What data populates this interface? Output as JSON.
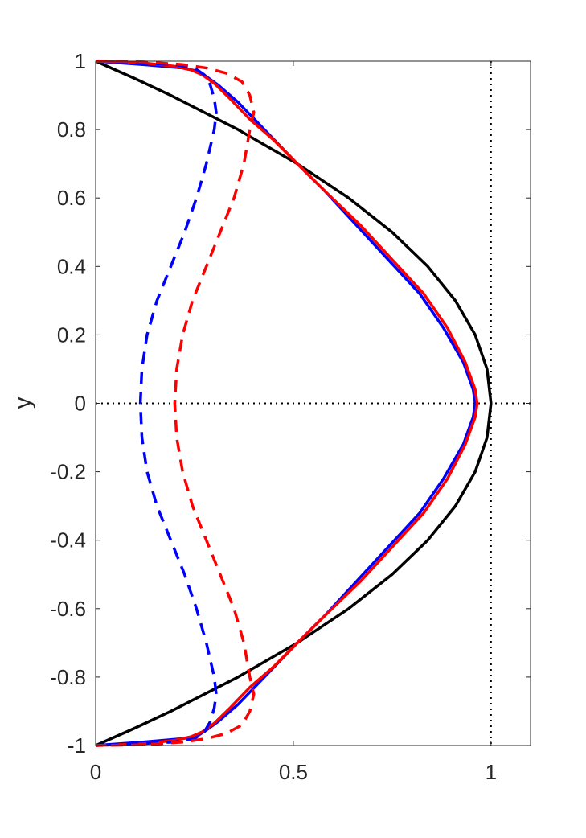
{
  "chart_data": {
    "type": "line",
    "title": "",
    "xlabel": "",
    "ylabel": "y",
    "xlim": [
      0,
      1.1
    ],
    "ylim": [
      -1,
      1
    ],
    "x_ticks": [
      0,
      0.5,
      1
    ],
    "x_tick_labels": [
      "0",
      "0.5",
      "1"
    ],
    "y_ticks": [
      1,
      0.8,
      0.6,
      0.4,
      0.2,
      0,
      -0.2,
      -0.4,
      -0.6,
      -0.8,
      -1
    ],
    "y_tick_labels": [
      "1",
      "0.8",
      "0.6",
      "0.4",
      "0.2",
      "0",
      "-0.2",
      "-0.4",
      "-0.6",
      "-0.8",
      "-1"
    ],
    "grid": false,
    "legend": "none",
    "reference_lines": [
      {
        "orientation": "vertical",
        "x": 1,
        "style": "dotted",
        "color": "#000000"
      },
      {
        "orientation": "horizontal",
        "y": 0,
        "style": "dotted",
        "color": "#000000"
      }
    ],
    "series": [
      {
        "color": "#000000",
        "style": "solid",
        "points": [
          [
            0,
            1
          ],
          [
            0.0975,
            0.95
          ],
          [
            0.19,
            0.9
          ],
          [
            0.36,
            0.8
          ],
          [
            0.51,
            0.7
          ],
          [
            0.64,
            0.6
          ],
          [
            0.75,
            0.5
          ],
          [
            0.84,
            0.4
          ],
          [
            0.91,
            0.3
          ],
          [
            0.96,
            0.2
          ],
          [
            0.99,
            0.1
          ],
          [
            1,
            0
          ],
          [
            0.99,
            -0.1
          ],
          [
            0.96,
            -0.2
          ],
          [
            0.91,
            -0.3
          ],
          [
            0.84,
            -0.4
          ],
          [
            0.75,
            -0.5
          ],
          [
            0.64,
            -0.6
          ],
          [
            0.51,
            -0.7
          ],
          [
            0.36,
            -0.8
          ],
          [
            0.19,
            -0.9
          ],
          [
            0.0975,
            -0.95
          ],
          [
            0,
            -1
          ]
        ]
      },
      {
        "color": "#0000ff",
        "style": "solid",
        "points": [
          [
            0,
            1
          ],
          [
            0.12,
            0.99
          ],
          [
            0.22,
            0.98
          ],
          [
            0.26,
            0.97
          ],
          [
            0.28,
            0.955
          ],
          [
            0.31,
            0.93
          ],
          [
            0.36,
            0.88
          ],
          [
            0.41,
            0.82
          ],
          [
            0.46,
            0.76
          ],
          [
            0.51,
            0.7
          ],
          [
            0.58,
            0.62
          ],
          [
            0.66,
            0.52
          ],
          [
            0.74,
            0.42
          ],
          [
            0.82,
            0.32
          ],
          [
            0.88,
            0.22
          ],
          [
            0.93,
            0.12
          ],
          [
            0.955,
            0.04
          ],
          [
            0.96,
            0
          ],
          [
            0.955,
            -0.04
          ],
          [
            0.93,
            -0.12
          ],
          [
            0.88,
            -0.22
          ],
          [
            0.82,
            -0.32
          ],
          [
            0.74,
            -0.42
          ],
          [
            0.66,
            -0.52
          ],
          [
            0.58,
            -0.62
          ],
          [
            0.51,
            -0.7
          ],
          [
            0.46,
            -0.76
          ],
          [
            0.41,
            -0.82
          ],
          [
            0.36,
            -0.88
          ],
          [
            0.31,
            -0.93
          ],
          [
            0.28,
            -0.955
          ],
          [
            0.26,
            -0.97
          ],
          [
            0.22,
            -0.98
          ],
          [
            0.12,
            -0.99
          ],
          [
            0,
            -1
          ]
        ]
      },
      {
        "color": "#ff0000",
        "style": "solid",
        "points": [
          [
            0,
            1
          ],
          [
            0.12,
            0.995
          ],
          [
            0.2,
            0.985
          ],
          [
            0.24,
            0.975
          ],
          [
            0.27,
            0.96
          ],
          [
            0.3,
            0.935
          ],
          [
            0.34,
            0.89
          ],
          [
            0.39,
            0.83
          ],
          [
            0.45,
            0.77
          ],
          [
            0.51,
            0.7
          ],
          [
            0.58,
            0.62
          ],
          [
            0.67,
            0.52
          ],
          [
            0.75,
            0.42
          ],
          [
            0.83,
            0.32
          ],
          [
            0.89,
            0.22
          ],
          [
            0.935,
            0.12
          ],
          [
            0.96,
            0.04
          ],
          [
            0.965,
            0
          ],
          [
            0.96,
            -0.04
          ],
          [
            0.935,
            -0.12
          ],
          [
            0.89,
            -0.22
          ],
          [
            0.83,
            -0.32
          ],
          [
            0.75,
            -0.42
          ],
          [
            0.67,
            -0.52
          ],
          [
            0.58,
            -0.62
          ],
          [
            0.51,
            -0.7
          ],
          [
            0.45,
            -0.77
          ],
          [
            0.39,
            -0.83
          ],
          [
            0.34,
            -0.89
          ],
          [
            0.3,
            -0.935
          ],
          [
            0.27,
            -0.96
          ],
          [
            0.24,
            -0.975
          ],
          [
            0.2,
            -0.985
          ],
          [
            0.12,
            -0.995
          ],
          [
            0,
            -1
          ]
        ]
      },
      {
        "color": "#0000ff",
        "style": "dashed",
        "points": [
          [
            0,
            1
          ],
          [
            0.1,
            0.995
          ],
          [
            0.2,
            0.99
          ],
          [
            0.25,
            0.98
          ],
          [
            0.275,
            0.96
          ],
          [
            0.29,
            0.93
          ],
          [
            0.3,
            0.89
          ],
          [
            0.305,
            0.85
          ],
          [
            0.3,
            0.8
          ],
          [
            0.28,
            0.7
          ],
          [
            0.255,
            0.6
          ],
          [
            0.225,
            0.5
          ],
          [
            0.19,
            0.4
          ],
          [
            0.155,
            0.3
          ],
          [
            0.13,
            0.2
          ],
          [
            0.117,
            0.1
          ],
          [
            0.113,
            0
          ],
          [
            0.117,
            -0.1
          ],
          [
            0.13,
            -0.2
          ],
          [
            0.155,
            -0.3
          ],
          [
            0.19,
            -0.4
          ],
          [
            0.225,
            -0.5
          ],
          [
            0.255,
            -0.6
          ],
          [
            0.28,
            -0.7
          ],
          [
            0.3,
            -0.8
          ],
          [
            0.305,
            -0.85
          ],
          [
            0.3,
            -0.89
          ],
          [
            0.29,
            -0.93
          ],
          [
            0.275,
            -0.96
          ],
          [
            0.25,
            -0.98
          ],
          [
            0.2,
            -0.99
          ],
          [
            0.1,
            -0.995
          ],
          [
            0,
            -1
          ]
        ]
      },
      {
        "color": "#ff0000",
        "style": "dashed",
        "points": [
          [
            0,
            1
          ],
          [
            0.12,
            0.998
          ],
          [
            0.22,
            0.99
          ],
          [
            0.28,
            0.98
          ],
          [
            0.33,
            0.965
          ],
          [
            0.37,
            0.94
          ],
          [
            0.39,
            0.9
          ],
          [
            0.4,
            0.85
          ],
          [
            0.39,
            0.8
          ],
          [
            0.375,
            0.7
          ],
          [
            0.35,
            0.6
          ],
          [
            0.315,
            0.5
          ],
          [
            0.28,
            0.4
          ],
          [
            0.245,
            0.3
          ],
          [
            0.22,
            0.2
          ],
          [
            0.205,
            0.1
          ],
          [
            0.2,
            0
          ],
          [
            0.205,
            -0.1
          ],
          [
            0.22,
            -0.2
          ],
          [
            0.245,
            -0.3
          ],
          [
            0.28,
            -0.4
          ],
          [
            0.315,
            -0.5
          ],
          [
            0.35,
            -0.6
          ],
          [
            0.375,
            -0.7
          ],
          [
            0.39,
            -0.8
          ],
          [
            0.4,
            -0.85
          ],
          [
            0.39,
            -0.9
          ],
          [
            0.37,
            -0.94
          ],
          [
            0.33,
            -0.965
          ],
          [
            0.28,
            -0.98
          ],
          [
            0.22,
            -0.99
          ],
          [
            0.12,
            -0.998
          ],
          [
            0,
            -1
          ]
        ]
      }
    ]
  }
}
